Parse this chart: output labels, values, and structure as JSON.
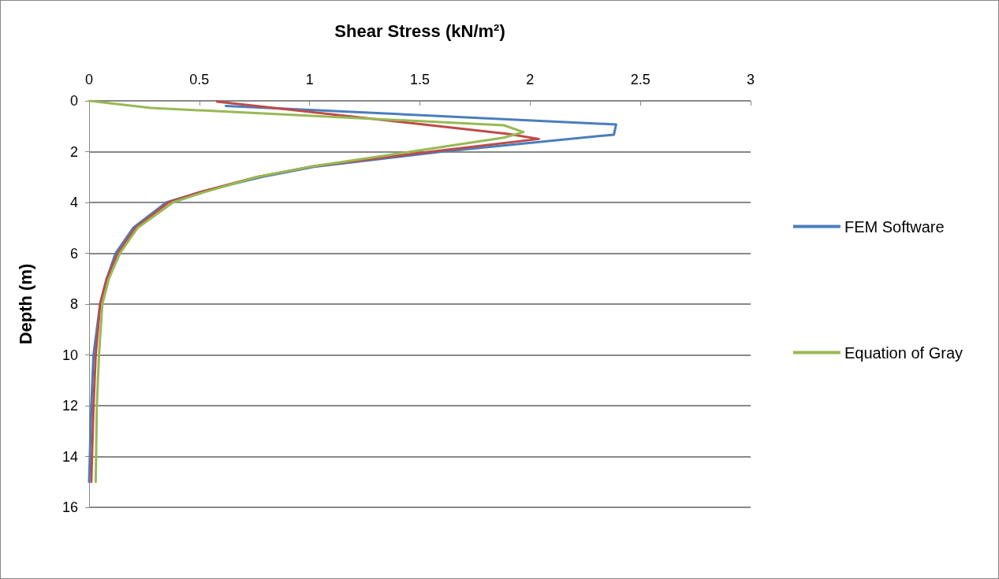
{
  "chart_data": {
    "type": "line",
    "xlabel": "Shear Stress (kN/m²)",
    "ylabel": "Depth (m)",
    "xlim": [
      0,
      3
    ],
    "xticks": [
      0,
      0.5,
      1,
      1.5,
      2,
      2.5,
      3
    ],
    "ylim": [
      16,
      0
    ],
    "yticks": [
      0,
      2,
      4,
      6,
      8,
      10,
      12,
      14,
      16
    ],
    "grid": "y",
    "legend": "right",
    "marker": "none",
    "line_style": "solid",
    "series": [
      {
        "name": "FEM Software",
        "color": "#4a7ebb",
        "x": [
          0.62,
          2.39,
          2.38,
          1.6,
          1.02,
          0.78,
          0.5,
          0.35,
          0.2,
          0.12,
          0.08,
          0.05,
          0.02,
          0.01,
          0.0
        ],
        "values": [
          0.2,
          0.93,
          1.33,
          2.0,
          2.6,
          3.0,
          3.6,
          4.0,
          5.0,
          6.0,
          7.0,
          8.0,
          10,
          12,
          15
        ]
      },
      {
        "color": "#be4b48",
        "x": [
          0.58,
          1.9,
          2.04,
          1.55,
          1.0,
          0.76,
          0.5,
          0.36,
          0.21,
          0.13,
          0.08,
          0.05,
          0.03,
          0.02,
          0.01
        ],
        "values": [
          0.03,
          1.3,
          1.5,
          2.0,
          2.6,
          3.0,
          3.6,
          4.0,
          5.0,
          6.0,
          7.0,
          8.0,
          10,
          12,
          15
        ]
      },
      {
        "name": "Equation of Gray",
        "color": "#98b954",
        "x": [
          0,
          0.28,
          1.88,
          1.97,
          1.88,
          1.46,
          1.0,
          0.76,
          0.52,
          0.38,
          0.22,
          0.14,
          0.09,
          0.06,
          0.045,
          0.035,
          0.03
        ],
        "values": [
          0,
          0.28,
          0.96,
          1.23,
          1.45,
          2.0,
          2.6,
          3.0,
          3.6,
          4.0,
          5.0,
          6.0,
          7.0,
          8.0,
          10,
          12,
          15
        ]
      }
    ]
  }
}
